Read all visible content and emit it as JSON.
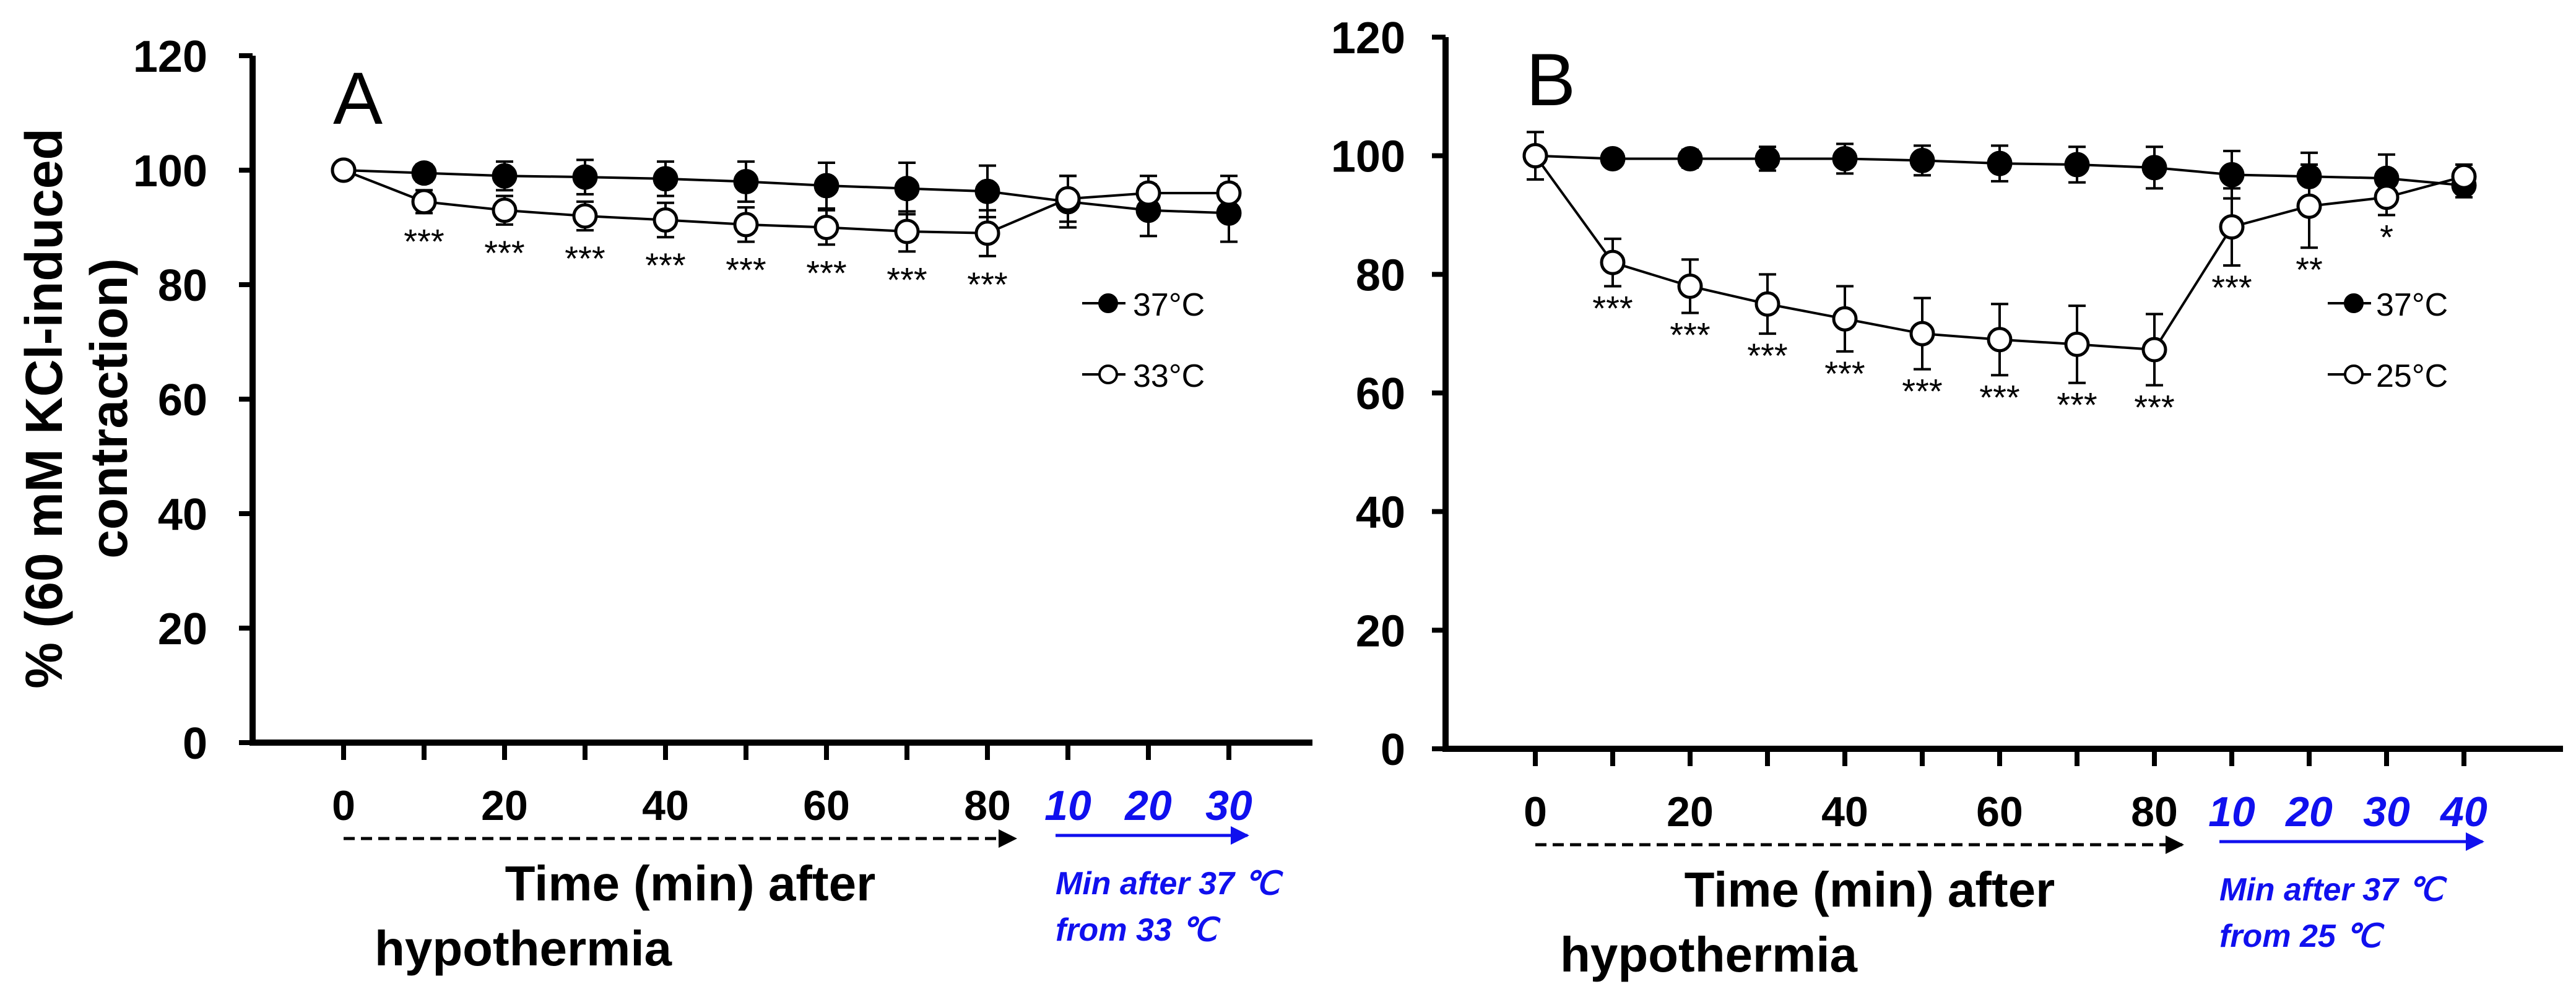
{
  "figure": {
    "ylabel_line1": "% (60 mM KCl-induced",
    "ylabel_line2": "contraction)"
  },
  "colors": {
    "axis": "#000000",
    "blue": "#1010ee",
    "filled": "#000000",
    "open": "#ffffff"
  },
  "chart_data": [
    {
      "type": "line",
      "panel_label": "A",
      "x_tick_labels": [
        "0",
        "20",
        "40",
        "60",
        "80"
      ],
      "recovery_tick_labels": [
        "10",
        "20",
        "30"
      ],
      "xlabel_line1": "Time (min)  after",
      "xlabel_line2": "hypothermia",
      "recovery_label_line1": "Min after 37 ℃",
      "recovery_label_line2": "from 33  ℃",
      "ylim": [
        0,
        120
      ],
      "y_ticks": [
        "0",
        "20",
        "40",
        "60",
        "80",
        "100",
        "120"
      ],
      "x": [
        0,
        10,
        20,
        30,
        40,
        50,
        60,
        70,
        80,
        90,
        100,
        110
      ],
      "series": [
        {
          "name": "37°C",
          "marker": "filled",
          "values": [
            100,
            99.5,
            99,
            98.8,
            98.5,
            98,
            97.3,
            96.8,
            96.3,
            94.5,
            93,
            92.5
          ],
          "errors": [
            1,
            1.5,
            2.5,
            3,
            3,
            3.5,
            4,
            4.5,
            4.5,
            4.5,
            4.5,
            5
          ]
        },
        {
          "name": "33°C",
          "marker": "open",
          "values": [
            100,
            94.5,
            93,
            92,
            91.3,
            90.5,
            90,
            89.3,
            89,
            95,
            96,
            96
          ],
          "errors": [
            1,
            2,
            2.5,
            2.5,
            3,
            3,
            3,
            3.5,
            4,
            4,
            3,
            3
          ]
        }
      ],
      "annotations": [
        {
          "x": 10,
          "text": "***"
        },
        {
          "x": 20,
          "text": "***"
        },
        {
          "x": 30,
          "text": "***"
        },
        {
          "x": 40,
          "text": "***"
        },
        {
          "x": 50,
          "text": "***"
        },
        {
          "x": 60,
          "text": "***"
        },
        {
          "x": 70,
          "text": "***"
        },
        {
          "x": 80,
          "text": "***"
        }
      ],
      "legend": [
        "37°C",
        "33°C"
      ],
      "legend_position": "right"
    },
    {
      "type": "line",
      "panel_label": "B",
      "x_tick_labels": [
        "0",
        "20",
        "40",
        "60",
        "80"
      ],
      "recovery_tick_labels": [
        "10",
        "20",
        "30",
        "40"
      ],
      "xlabel_line1": "Time (min)  after",
      "xlabel_line2": "hypothermia",
      "recovery_label_line1": "Min after 37 ℃",
      "recovery_label_line2": "from 25  ℃",
      "ylim": [
        0,
        120
      ],
      "y_ticks": [
        "0",
        "20",
        "40",
        "60",
        "80",
        "100",
        "120"
      ],
      "x": [
        0,
        10,
        20,
        30,
        40,
        50,
        60,
        70,
        80,
        90,
        100,
        110,
        120
      ],
      "series": [
        {
          "name": "37°C",
          "marker": "filled",
          "values": [
            100,
            99.5,
            99.5,
            99.5,
            99.5,
            99.2,
            98.7,
            98.5,
            98,
            96.8,
            96.5,
            96.2,
            95
          ],
          "errors": [
            1,
            1,
            1.5,
            2,
            2.5,
            2.5,
            3,
            3,
            3.5,
            4,
            4,
            4,
            2
          ]
        },
        {
          "name": "25°C",
          "marker": "open",
          "values": [
            100,
            82,
            78,
            75,
            72.5,
            70,
            69,
            68.2,
            67.3,
            88,
            91.5,
            93,
            96.5
          ],
          "errors": [
            4,
            4,
            4.5,
            5,
            5.5,
            6,
            6,
            6.5,
            6,
            6.5,
            7,
            3,
            2
          ]
        }
      ],
      "annotations": [
        {
          "x": 10,
          "text": "***"
        },
        {
          "x": 20,
          "text": "***"
        },
        {
          "x": 30,
          "text": "***"
        },
        {
          "x": 40,
          "text": "***"
        },
        {
          "x": 50,
          "text": "***"
        },
        {
          "x": 60,
          "text": "***"
        },
        {
          "x": 70,
          "text": "***"
        },
        {
          "x": 80,
          "text": "***"
        },
        {
          "x": 90,
          "text": "***"
        },
        {
          "x": 100,
          "text": "**"
        },
        {
          "x": 110,
          "text": "*"
        }
      ],
      "legend": [
        "37°C",
        "25°C"
      ],
      "legend_position": "right"
    }
  ]
}
